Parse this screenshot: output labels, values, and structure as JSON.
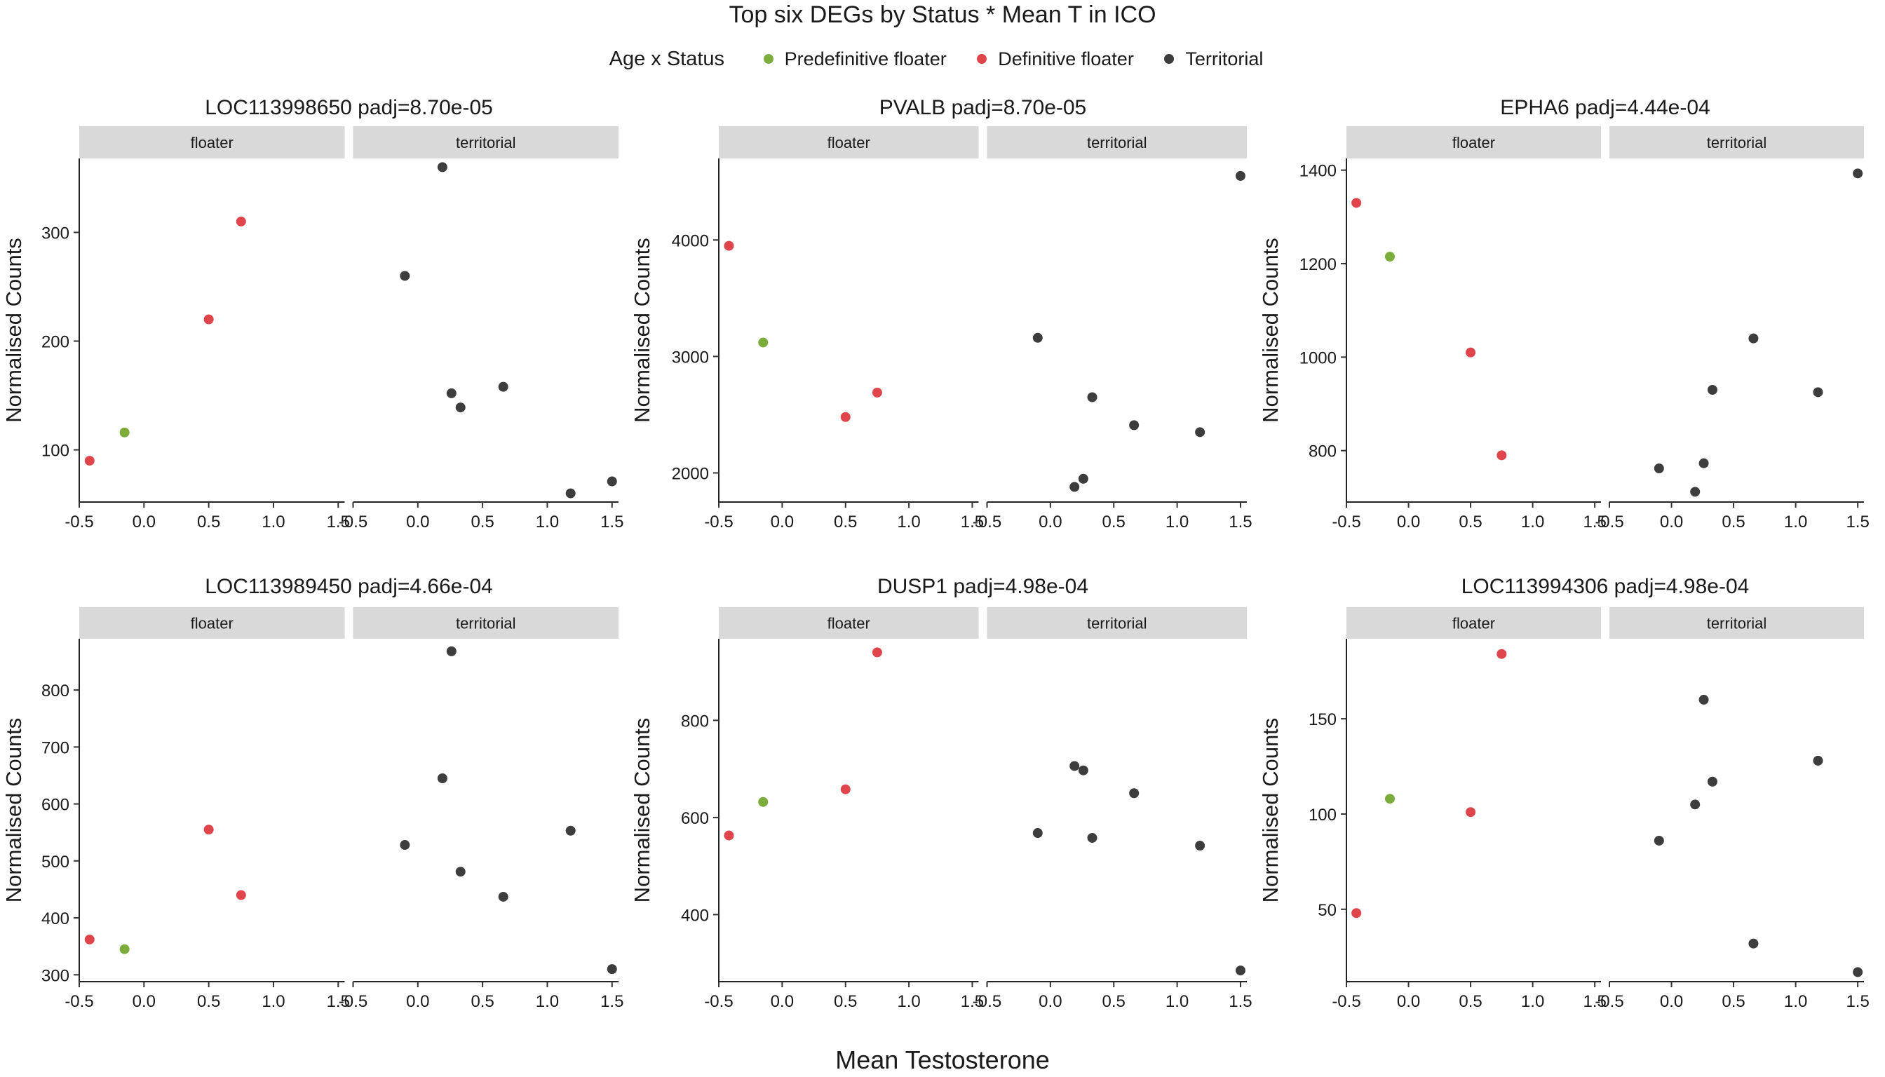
{
  "chart_data": {
    "type": "scatter",
    "title": "Top six DEGs by Status * Mean T in ICO",
    "xlabel": "Mean Testosterone",
    "ylabel": "Normalised Counts",
    "legend": {
      "title": "Age x Status",
      "position": "top",
      "entries": [
        {
          "name": "Predefinitive floater",
          "color": "#7cad3c"
        },
        {
          "name": "Definitive floater",
          "color": "#e0454b"
        },
        {
          "name": "Territorial",
          "color": "#3d3d3d"
        }
      ]
    },
    "facets": [
      "floater",
      "territorial"
    ],
    "xlim": [
      -0.5,
      1.55
    ],
    "x_ticks": [
      -0.5,
      0.0,
      0.5,
      1.0,
      1.5
    ],
    "x_tick_labels": [
      "-0.5",
      "0.0",
      "0.5",
      "1.0",
      "1.5"
    ],
    "grid": false,
    "panels": [
      {
        "title": "LOC113998650 padj=8.70e-05",
        "ylim": [
          52,
          368
        ],
        "y_ticks": [
          100,
          200,
          300
        ],
        "points": [
          {
            "facet": "floater",
            "group": "Definitive floater",
            "x": -0.42,
            "y": 90
          },
          {
            "facet": "floater",
            "group": "Predefinitive floater",
            "x": -0.15,
            "y": 116
          },
          {
            "facet": "floater",
            "group": "Definitive floater",
            "x": 0.5,
            "y": 220
          },
          {
            "facet": "floater",
            "group": "Definitive floater",
            "x": 0.75,
            "y": 310
          },
          {
            "facet": "territorial",
            "group": "Territorial",
            "x": -0.1,
            "y": 260
          },
          {
            "facet": "territorial",
            "group": "Territorial",
            "x": 0.19,
            "y": 360
          },
          {
            "facet": "territorial",
            "group": "Territorial",
            "x": 0.26,
            "y": 152
          },
          {
            "facet": "territorial",
            "group": "Territorial",
            "x": 0.33,
            "y": 139
          },
          {
            "facet": "territorial",
            "group": "Territorial",
            "x": 0.66,
            "y": 158
          },
          {
            "facet": "territorial",
            "group": "Territorial",
            "x": 1.18,
            "y": 60
          },
          {
            "facet": "territorial",
            "group": "Territorial",
            "x": 1.5,
            "y": 71
          }
        ]
      },
      {
        "title": "PVALB padj=8.70e-05",
        "ylim": [
          1750,
          4700
        ],
        "y_ticks": [
          2000,
          3000,
          4000
        ],
        "points": [
          {
            "facet": "floater",
            "group": "Definitive floater",
            "x": -0.42,
            "y": 3950
          },
          {
            "facet": "floater",
            "group": "Predefinitive floater",
            "x": -0.15,
            "y": 3120
          },
          {
            "facet": "floater",
            "group": "Definitive floater",
            "x": 0.5,
            "y": 2480
          },
          {
            "facet": "floater",
            "group": "Definitive floater",
            "x": 0.75,
            "y": 2690
          },
          {
            "facet": "territorial",
            "group": "Territorial",
            "x": -0.1,
            "y": 3160
          },
          {
            "facet": "territorial",
            "group": "Territorial",
            "x": 0.19,
            "y": 1880
          },
          {
            "facet": "territorial",
            "group": "Territorial",
            "x": 0.26,
            "y": 1950
          },
          {
            "facet": "territorial",
            "group": "Territorial",
            "x": 0.33,
            "y": 2650
          },
          {
            "facet": "territorial",
            "group": "Territorial",
            "x": 0.66,
            "y": 2410
          },
          {
            "facet": "territorial",
            "group": "Territorial",
            "x": 1.18,
            "y": 2350
          },
          {
            "facet": "territorial",
            "group": "Territorial",
            "x": 1.5,
            "y": 4550
          }
        ]
      },
      {
        "title": "EPHA6 padj=4.44e-04",
        "ylim": [
          690,
          1425
        ],
        "y_ticks": [
          800,
          1000,
          1200,
          1400
        ],
        "points": [
          {
            "facet": "floater",
            "group": "Definitive floater",
            "x": -0.42,
            "y": 1330
          },
          {
            "facet": "floater",
            "group": "Predefinitive floater",
            "x": -0.15,
            "y": 1215
          },
          {
            "facet": "floater",
            "group": "Definitive floater",
            "x": 0.5,
            "y": 1010
          },
          {
            "facet": "floater",
            "group": "Definitive floater",
            "x": 0.75,
            "y": 790
          },
          {
            "facet": "territorial",
            "group": "Territorial",
            "x": -0.1,
            "y": 762
          },
          {
            "facet": "territorial",
            "group": "Territorial",
            "x": 0.19,
            "y": 712
          },
          {
            "facet": "territorial",
            "group": "Territorial",
            "x": 0.26,
            "y": 773
          },
          {
            "facet": "territorial",
            "group": "Territorial",
            "x": 0.33,
            "y": 930
          },
          {
            "facet": "territorial",
            "group": "Territorial",
            "x": 0.66,
            "y": 1040
          },
          {
            "facet": "territorial",
            "group": "Territorial",
            "x": 1.18,
            "y": 925
          },
          {
            "facet": "territorial",
            "group": "Territorial",
            "x": 1.5,
            "y": 1393
          }
        ]
      },
      {
        "title": "LOC113989450 padj=4.66e-04",
        "ylim": [
          288,
          890
        ],
        "y_ticks": [
          300,
          400,
          500,
          600,
          700,
          800
        ],
        "points": [
          {
            "facet": "floater",
            "group": "Definitive floater",
            "x": -0.42,
            "y": 362
          },
          {
            "facet": "floater",
            "group": "Predefinitive floater",
            "x": -0.15,
            "y": 345
          },
          {
            "facet": "floater",
            "group": "Definitive floater",
            "x": 0.5,
            "y": 555
          },
          {
            "facet": "floater",
            "group": "Definitive floater",
            "x": 0.75,
            "y": 440
          },
          {
            "facet": "territorial",
            "group": "Territorial",
            "x": -0.1,
            "y": 528
          },
          {
            "facet": "territorial",
            "group": "Territorial",
            "x": 0.19,
            "y": 645
          },
          {
            "facet": "territorial",
            "group": "Territorial",
            "x": 0.26,
            "y": 868
          },
          {
            "facet": "territorial",
            "group": "Territorial",
            "x": 0.33,
            "y": 481
          },
          {
            "facet": "territorial",
            "group": "Territorial",
            "x": 0.66,
            "y": 437
          },
          {
            "facet": "territorial",
            "group": "Territorial",
            "x": 1.18,
            "y": 553
          },
          {
            "facet": "territorial",
            "group": "Territorial",
            "x": 1.5,
            "y": 310
          }
        ]
      },
      {
        "title": "DUSP1 padj=4.98e-04",
        "ylim": [
          262,
          968
        ],
        "y_ticks": [
          400,
          600,
          800
        ],
        "points": [
          {
            "facet": "floater",
            "group": "Definitive floater",
            "x": -0.42,
            "y": 563
          },
          {
            "facet": "floater",
            "group": "Predefinitive floater",
            "x": -0.15,
            "y": 632
          },
          {
            "facet": "floater",
            "group": "Definitive floater",
            "x": 0.5,
            "y": 658
          },
          {
            "facet": "floater",
            "group": "Definitive floater",
            "x": 0.75,
            "y": 940
          },
          {
            "facet": "territorial",
            "group": "Territorial",
            "x": -0.1,
            "y": 568
          },
          {
            "facet": "territorial",
            "group": "Territorial",
            "x": 0.19,
            "y": 706
          },
          {
            "facet": "territorial",
            "group": "Territorial",
            "x": 0.26,
            "y": 697
          },
          {
            "facet": "territorial",
            "group": "Territorial",
            "x": 0.33,
            "y": 558
          },
          {
            "facet": "territorial",
            "group": "Territorial",
            "x": 0.66,
            "y": 650
          },
          {
            "facet": "territorial",
            "group": "Territorial",
            "x": 1.18,
            "y": 542
          },
          {
            "facet": "territorial",
            "group": "Territorial",
            "x": 1.5,
            "y": 285
          }
        ]
      },
      {
        "title": "LOC113994306 padj=4.98e-04",
        "ylim": [
          12,
          192
        ],
        "y_ticks": [
          50,
          100,
          150
        ],
        "points": [
          {
            "facet": "floater",
            "group": "Definitive floater",
            "x": -0.42,
            "y": 48
          },
          {
            "facet": "floater",
            "group": "Predefinitive floater",
            "x": -0.15,
            "y": 108
          },
          {
            "facet": "floater",
            "group": "Definitive floater",
            "x": 0.5,
            "y": 101
          },
          {
            "facet": "floater",
            "group": "Definitive floater",
            "x": 0.75,
            "y": 184
          },
          {
            "facet": "territorial",
            "group": "Territorial",
            "x": -0.1,
            "y": 86
          },
          {
            "facet": "territorial",
            "group": "Territorial",
            "x": 0.19,
            "y": 105
          },
          {
            "facet": "territorial",
            "group": "Territorial",
            "x": 0.26,
            "y": 160
          },
          {
            "facet": "territorial",
            "group": "Territorial",
            "x": 0.33,
            "y": 117
          },
          {
            "facet": "territorial",
            "group": "Territorial",
            "x": 0.66,
            "y": 32
          },
          {
            "facet": "territorial",
            "group": "Territorial",
            "x": 1.18,
            "y": 128
          },
          {
            "facet": "territorial",
            "group": "Territorial",
            "x": 1.5,
            "y": 17
          }
        ]
      }
    ]
  }
}
